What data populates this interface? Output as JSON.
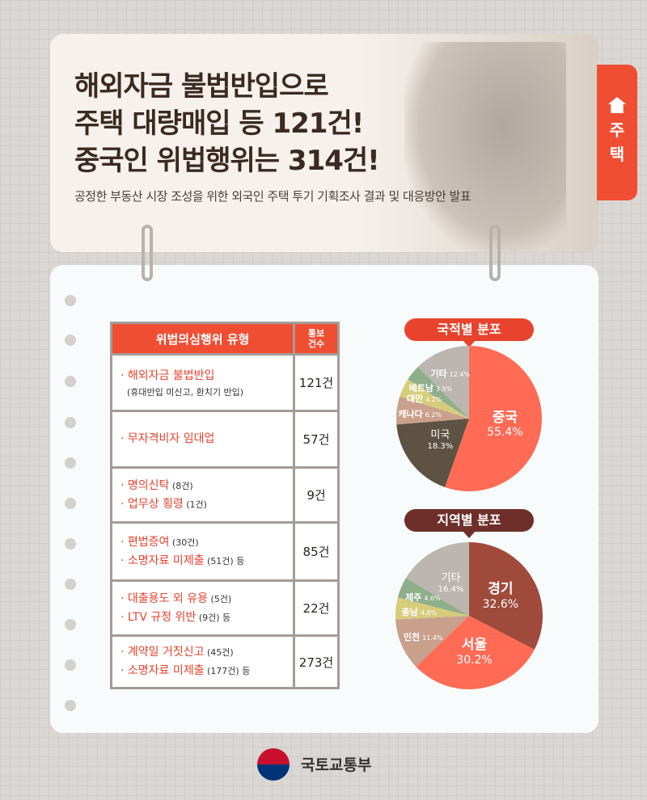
{
  "header": {
    "title_lines": [
      "해외자금 불법반입으로",
      "주택 대량매입 등 121건!",
      "중국인 위법행위는 314건!"
    ],
    "subtitle": "공정한 부동산 시장 조성을 위한 외국인 주택 투기 기획조사 결과 및 대응방안 발표"
  },
  "side_tab": {
    "icon": "house-icon",
    "label_lines": [
      "주",
      "택"
    ]
  },
  "table": {
    "headers": [
      "위법의심행위 유형",
      "통보\n건수"
    ],
    "rows": [
      {
        "items": [
          {
            "main": "· 해외자금 불법반입",
            "sub": ""
          }
        ],
        "note": "(휴대반입 미신고, 환치기 반입)",
        "count": "121건"
      },
      {
        "items": [
          {
            "main": "· 무자격비자 임대업",
            "sub": ""
          }
        ],
        "note": "",
        "count": "57건"
      },
      {
        "items": [
          {
            "main": "· 명의신탁",
            "sub": " (8건)"
          },
          {
            "main": "· 업무상 횡령",
            "sub": " (1건)"
          }
        ],
        "note": "",
        "count": "9건"
      },
      {
        "items": [
          {
            "main": "· 편법증여",
            "sub": " (30건)"
          },
          {
            "main": "· 소명자료 미제출",
            "sub": " (51건) 등"
          }
        ],
        "note": "",
        "count": "85건"
      },
      {
        "items": [
          {
            "main": "· 대출용도 외 유용",
            "sub": " (5건)"
          },
          {
            "main": "· LTV 규정 위반",
            "sub": " (9건) 등"
          }
        ],
        "note": "",
        "count": "22건"
      },
      {
        "items": [
          {
            "main": "· 계약일 거짓신고",
            "sub": " (45건)"
          },
          {
            "main": "· 소명자료 미제출",
            "sub": " (177건) 등"
          }
        ],
        "note": "",
        "count": "273건"
      }
    ]
  },
  "chart_data": [
    {
      "type": "pie",
      "title": "국적별 분포",
      "title_color": "#e8432d",
      "categories": [
        "중국",
        "미국",
        "캐나다",
        "대만",
        "베트남",
        "기타"
      ],
      "values": [
        55.4,
        18.3,
        6.2,
        4.2,
        3.5,
        12.4
      ],
      "labels": [
        "55.4%",
        "18.3%",
        "6.2%",
        "4.2%",
        "3.5%",
        "12.4%"
      ],
      "colors": [
        "#ff6b55",
        "#5e5242",
        "#c9a08c",
        "#d6cc7c",
        "#8fae8a",
        "#bcb6b1"
      ]
    },
    {
      "type": "pie",
      "title": "지역별 분포",
      "title_color": "#6e2f2a",
      "categories": [
        "경기",
        "서울",
        "인천",
        "충남",
        "제주",
        "기타"
      ],
      "values": [
        32.6,
        30.2,
        11.4,
        4.8,
        4.6,
        16.4
      ],
      "labels": [
        "32.6%",
        "30.2%",
        "11.4%",
        "4.8%",
        "4.6%",
        "16.4%"
      ],
      "colors": [
        "#a04a3c",
        "#ff6b55",
        "#c9a08c",
        "#d6cc7c",
        "#8fae8a",
        "#bcb6b1"
      ]
    }
  ],
  "footer": {
    "org": "국토교통부"
  }
}
